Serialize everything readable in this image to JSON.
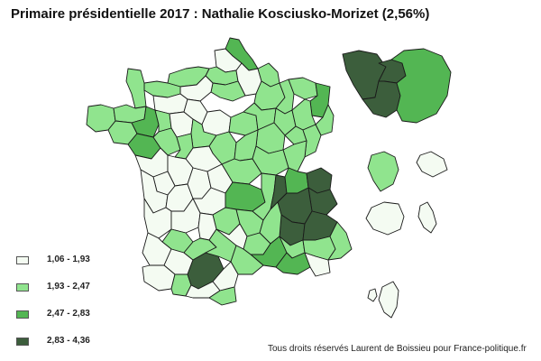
{
  "title": "Primaire présidentielle 2017 : Nathalie Kosciusko-Morizet (2,56%)",
  "legend": [
    {
      "label": "1,06 - 1,93",
      "color": "#f4fbf2"
    },
    {
      "label": "1,93 - 2,47",
      "color": "#90e48e"
    },
    {
      "label": "2,47 - 2,83",
      "color": "#53b653"
    },
    {
      "label": "2,83 - 4,36",
      "color": "#3c5e3c"
    }
  ],
  "credit": "Tous droits réservés Laurent de Boissieu pour France-politique.fr",
  "map": {
    "border_color": "#1a1a1a",
    "regions": [
      {
        "name": "nord",
        "class": 2
      },
      {
        "name": "pas-de-calais",
        "class": 0
      },
      {
        "name": "somme",
        "class": 1
      },
      {
        "name": "aisne",
        "class": 0
      },
      {
        "name": "oise",
        "class": 1
      },
      {
        "name": "ardennes",
        "class": 1
      },
      {
        "name": "marne",
        "class": 1
      },
      {
        "name": "meuse",
        "class": 1
      },
      {
        "name": "moselle",
        "class": 1
      },
      {
        "name": "bas-rhin",
        "class": 2
      },
      {
        "name": "haut-rhin",
        "class": 1
      },
      {
        "name": "seine-maritime",
        "class": 1
      },
      {
        "name": "eure",
        "class": 0
      },
      {
        "name": "calvados",
        "class": 1
      },
      {
        "name": "manche",
        "class": 1
      },
      {
        "name": "orne",
        "class": 0
      },
      {
        "name": "finistere",
        "class": 1
      },
      {
        "name": "cotes-d-armor",
        "class": 1
      },
      {
        "name": "morbihan",
        "class": 1
      },
      {
        "name": "ille-et-vilaine",
        "class": 2
      },
      {
        "name": "loire-atlantique",
        "class": 2
      },
      {
        "name": "mayenne",
        "class": 1
      },
      {
        "name": "sarthe",
        "class": 0
      },
      {
        "name": "maine-et-loire",
        "class": 1
      },
      {
        "name": "vendee",
        "class": 0
      },
      {
        "name": "eure-et-loir",
        "class": 0
      },
      {
        "name": "loiret",
        "class": 0
      },
      {
        "name": "loir-et-cher",
        "class": 1
      },
      {
        "name": "indre-et-loire",
        "class": 1
      },
      {
        "name": "cher",
        "class": 1
      },
      {
        "name": "indre",
        "class": 0
      },
      {
        "name": "yonne",
        "class": 1
      },
      {
        "name": "aube",
        "class": 1
      },
      {
        "name": "haute-marne",
        "class": 1
      },
      {
        "name": "vosges",
        "class": 1
      },
      {
        "name": "cote-d-or",
        "class": 1
      },
      {
        "name": "nievre",
        "class": 1
      },
      {
        "name": "haute-saone",
        "class": 1
      },
      {
        "name": "doubs",
        "class": 1
      },
      {
        "name": "jura",
        "class": 1
      },
      {
        "name": "saone-et-loire",
        "class": 1
      },
      {
        "name": "allier",
        "class": 1
      },
      {
        "name": "vienne",
        "class": 0
      },
      {
        "name": "deux-sevres",
        "class": 0
      },
      {
        "name": "charente-maritime",
        "class": 0
      },
      {
        "name": "charente",
        "class": 0
      },
      {
        "name": "haute-vienne",
        "class": 0
      },
      {
        "name": "creuse",
        "class": 0
      },
      {
        "name": "correze",
        "class": 0
      },
      {
        "name": "puy-de-dome",
        "class": 2
      },
      {
        "name": "cantal",
        "class": 1
      },
      {
        "name": "haute-loire",
        "class": 1
      },
      {
        "name": "loire",
        "class": 1
      },
      {
        "name": "rhone",
        "class": 3
      },
      {
        "name": "ain",
        "class": 2
      },
      {
        "name": "haute-savoie",
        "class": 3
      },
      {
        "name": "savoie",
        "class": 3
      },
      {
        "name": "isere",
        "class": 3
      },
      {
        "name": "drome",
        "class": 3
      },
      {
        "name": "hautes-alpes",
        "class": 3
      },
      {
        "name": "ardeche",
        "class": 1
      },
      {
        "name": "gironde",
        "class": 0
      },
      {
        "name": "dordogne",
        "class": 0
      },
      {
        "name": "lot",
        "class": 0
      },
      {
        "name": "lot-et-garonne",
        "class": 1
      },
      {
        "name": "landes",
        "class": 0
      },
      {
        "name": "gers",
        "class": 0
      },
      {
        "name": "pyrenees-atlantiques",
        "class": 0
      },
      {
        "name": "hautes-pyrenees",
        "class": 1
      },
      {
        "name": "haute-garonne",
        "class": 3
      },
      {
        "name": "tarn-et-garonne",
        "class": 1
      },
      {
        "name": "tarn",
        "class": 1
      },
      {
        "name": "aveyron",
        "class": 0
      },
      {
        "name": "lozere",
        "class": 1
      },
      {
        "name": "gard",
        "class": 2
      },
      {
        "name": "herault",
        "class": 1
      },
      {
        "name": "aude",
        "class": 0
      },
      {
        "name": "ariege",
        "class": 0
      },
      {
        "name": "pyrenees-orientales",
        "class": 1
      },
      {
        "name": "vaucluse",
        "class": 1
      },
      {
        "name": "bouches-du-rhone",
        "class": 2
      },
      {
        "name": "var",
        "class": 0
      },
      {
        "name": "alpes-de-haute-provence",
        "class": 1
      },
      {
        "name": "alpes-maritimes",
        "class": 1
      },
      {
        "name": "corse",
        "class": 0
      },
      {
        "name": "idf-grande-couronne-ouest",
        "class": 3
      },
      {
        "name": "idf-paris-petite-couronne",
        "class": 3
      },
      {
        "name": "idf-essonne-sud",
        "class": 3
      },
      {
        "name": "idf-seine-et-marne",
        "class": 2
      },
      {
        "name": "outre-mer-guadeloupe",
        "class": 1
      },
      {
        "name": "outre-mer-guyane",
        "class": 0
      },
      {
        "name": "outre-mer-reunion",
        "class": 0
      },
      {
        "name": "outre-mer-martinique",
        "class": 0
      },
      {
        "name": "outre-mer-mayotte",
        "class": 0
      }
    ]
  }
}
